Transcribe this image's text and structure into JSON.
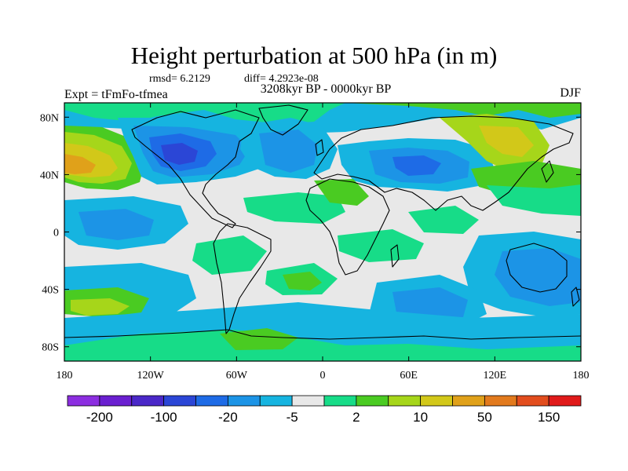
{
  "title": "Height perturbation at 500 hPa (in m)",
  "stats": {
    "rmsd": "rmsd= 6.2129",
    "diff": "diff= 4.2923e-08"
  },
  "period": "3208kyr BP - 0000kyr BP",
  "experiment": "Expt = tFmFo-tfmea",
  "season": "DJF",
  "axes": {
    "lat_ticks": [
      {
        "label": "80N",
        "lat": 80
      },
      {
        "label": "40N",
        "lat": 40
      },
      {
        "label": "0",
        "lat": 0
      },
      {
        "label": "40S",
        "lat": -40
      },
      {
        "label": "80S",
        "lat": -80
      }
    ],
    "lon_ticks": [
      {
        "label": "180",
        "lon": -180
      },
      {
        "label": "120W",
        "lon": -120
      },
      {
        "label": "60W",
        "lon": -60
      },
      {
        "label": "0",
        "lon": 0
      },
      {
        "label": "60E",
        "lon": 60
      },
      {
        "label": "120E",
        "lon": 120
      },
      {
        "label": "180",
        "lon": 180
      }
    ],
    "lat_range": [
      -90,
      90
    ],
    "lon_range": [
      -180,
      180
    ]
  },
  "colorbar": {
    "colors": [
      "#8c2ee0",
      "#6a1fd0",
      "#4a28c8",
      "#2b46d6",
      "#1e6be6",
      "#1c94e6",
      "#16b4e0",
      "#e8e8e8",
      "#17dc88",
      "#4acb22",
      "#a6d61a",
      "#d2c819",
      "#e0a11a",
      "#e27a1d",
      "#e24d1d",
      "#e01a1a"
    ],
    "tick_labels": [
      {
        "label": "-200",
        "boundary": 1
      },
      {
        "label": "-100",
        "boundary": 3
      },
      {
        "label": "-20",
        "boundary": 5
      },
      {
        "label": "-5",
        "boundary": 7
      },
      {
        "label": "2",
        "boundary": 9
      },
      {
        "label": "10",
        "boundary": 11
      },
      {
        "label": "50",
        "boundary": 13
      },
      {
        "label": "150",
        "boundary": 15
      }
    ]
  },
  "fields": {
    "background_color": "#e8e8e8",
    "blue_light": "#16b4e0",
    "blue_mid": "#1c94e6",
    "blue_dark": "#1e6be6",
    "blue_deep": "#2b46d6",
    "green_mint": "#17dc88",
    "green": "#4acb22",
    "yellow_green": "#a6d61a",
    "olive": "#d2c819",
    "orange": "#e0a11a"
  },
  "cities": []
}
